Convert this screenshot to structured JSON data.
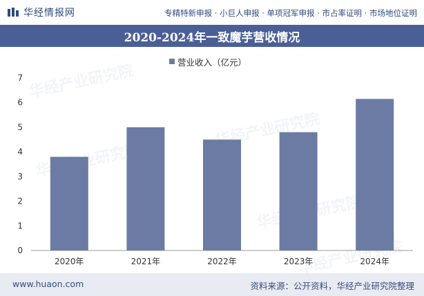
{
  "header": {
    "logo_text": "华经情报网",
    "services": "专精特新申报 · 小巨人申报 · 单项冠军申报 · 市占率证明 · 市场地位证明"
  },
  "watermark": {
    "brand": "华经产业研究院",
    "site": "www.huaon.com"
  },
  "chart_data": {
    "type": "bar",
    "title": "2020-2024年一致魔芋营收情况",
    "categories": [
      "2020年",
      "2021年",
      "2022年",
      "2023年",
      "2024年"
    ],
    "series": [
      {
        "name": "营业收入（亿元）",
        "values": [
          3.8,
          5.0,
          4.5,
          4.8,
          6.15
        ]
      }
    ],
    "yticks": [
      0,
      1,
      2,
      3,
      4,
      5,
      6,
      7
    ],
    "ylim": [
      0,
      7
    ],
    "xlabel": "",
    "ylabel": "",
    "legend": "top-center",
    "grid": false,
    "bar_color": "#6b7ba3"
  },
  "footer": {
    "site": "www.huaon.com",
    "source": "资料来源：公开资料，华经产业研究院整理"
  }
}
